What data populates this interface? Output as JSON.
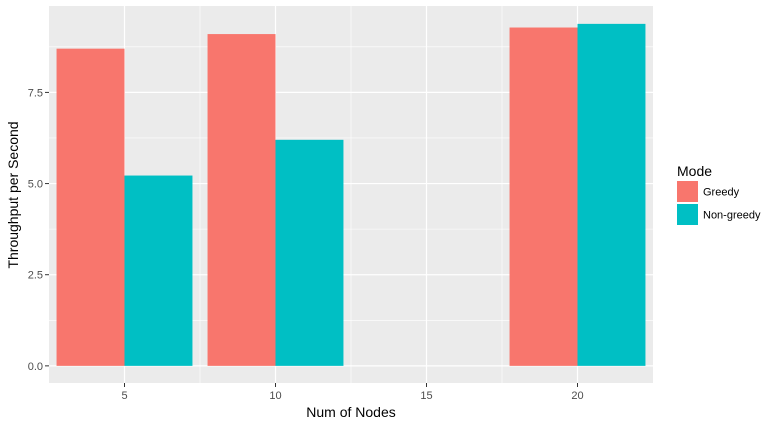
{
  "chart_data": {
    "type": "bar",
    "xlabel": "Num of Nodes",
    "ylabel": "Throughput per Second",
    "x_ticks": [
      "5",
      "10",
      "15",
      "20"
    ],
    "y_ticks": [
      "0.0",
      "2.5",
      "5.0",
      "7.5"
    ],
    "xlim": [
      2.5,
      22.5
    ],
    "ylim": [
      -0.47,
      9.87
    ],
    "grid": true,
    "legend_title": "Mode",
    "legend_position": "right",
    "series": [
      {
        "name": "Greedy",
        "color": "#F8766D",
        "x": [
          5,
          10,
          20
        ],
        "values": [
          8.7,
          9.1,
          9.28
        ]
      },
      {
        "name": "Non-greedy",
        "color": "#00BFC4",
        "x": [
          5,
          10,
          20
        ],
        "values": [
          5.22,
          6.2,
          9.38
        ]
      }
    ],
    "bar_group_width": 4.5
  },
  "colors": {
    "panel_background": "#EBEBEB",
    "grid_line": "#FFFFFF"
  }
}
